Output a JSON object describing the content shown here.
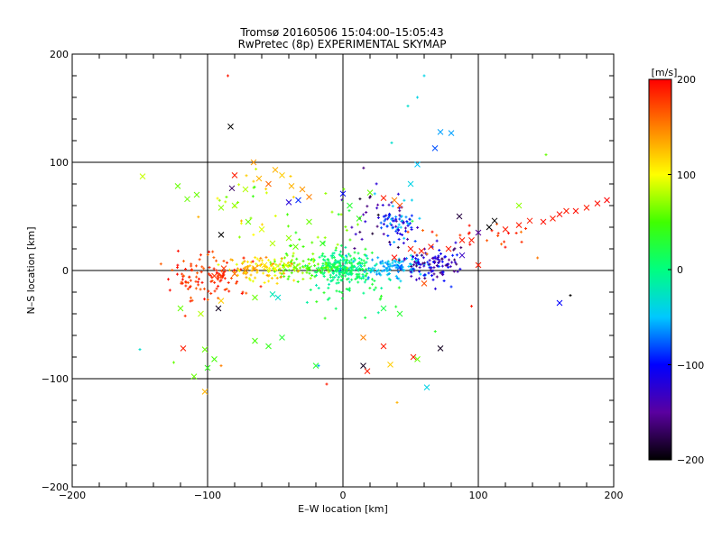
{
  "chart_data": {
    "type": "scatter",
    "title": "Tromsø 20160506 15:04:00–15:05:43",
    "subtitle": "RwPretec (8p) EXPERIMENTAL SKYMAP",
    "xlabel": "E–W location [km]",
    "ylabel": "N–S location [km]",
    "xlim": [
      -200,
      200
    ],
    "ylim": [
      -200,
      200
    ],
    "xticks": [
      "−200",
      "−100",
      "0",
      "100",
      "200"
    ],
    "yticks": [
      "−200",
      "−100",
      "0",
      "100",
      "200"
    ],
    "grid_lines": [
      -100,
      0,
      100
    ],
    "colorbar": {
      "label": "[m/s]",
      "range": [
        -200,
        200
      ],
      "ticks": [
        "−200",
        "−100",
        "0",
        "100",
        "200"
      ],
      "colormap": [
        "#000000",
        "#5a00a0",
        "#0000ff",
        "#00c8ff",
        "#00ff80",
        "#40ff00",
        "#ffff00",
        "#ff8000",
        "#ff0000"
      ]
    },
    "points": [
      {
        "x": -148,
        "y": 87,
        "v": 85,
        "m": "x"
      },
      {
        "x": -122,
        "y": 78,
        "v": 60,
        "m": "x"
      },
      {
        "x": -115,
        "y": 66,
        "v": 60,
        "m": "x"
      },
      {
        "x": -108,
        "y": 70,
        "v": 60,
        "m": "x"
      },
      {
        "x": -90,
        "y": 58,
        "v": 70,
        "m": "x"
      },
      {
        "x": -80,
        "y": 60,
        "v": 70,
        "m": "x"
      },
      {
        "x": -72,
        "y": 75,
        "v": 80,
        "m": "x"
      },
      {
        "x": -62,
        "y": 85,
        "v": 130,
        "m": "x"
      },
      {
        "x": -66,
        "y": 100,
        "v": 140,
        "m": "x"
      },
      {
        "x": -50,
        "y": 93,
        "v": 130,
        "m": "x"
      },
      {
        "x": -45,
        "y": 88,
        "v": 120,
        "m": "x"
      },
      {
        "x": -38,
        "y": 78,
        "v": 130,
        "m": "x"
      },
      {
        "x": -30,
        "y": 75,
        "v": 140,
        "m": "x"
      },
      {
        "x": -25,
        "y": 68,
        "v": 150,
        "m": "x"
      },
      {
        "x": -55,
        "y": 80,
        "v": 160,
        "m": "x"
      },
      {
        "x": -83,
        "y": 133,
        "v": -200,
        "m": "x"
      },
      {
        "x": -82,
        "y": 76,
        "v": -170,
        "m": "x"
      },
      {
        "x": -90,
        "y": 33,
        "v": -200,
        "m": "x"
      },
      {
        "x": -40,
        "y": 63,
        "v": -120,
        "m": "x"
      },
      {
        "x": -33,
        "y": 65,
        "v": -90,
        "m": "x"
      },
      {
        "x": -80,
        "y": 88,
        "v": 190,
        "m": "x"
      },
      {
        "x": -70,
        "y": 45,
        "v": 60,
        "m": "x"
      },
      {
        "x": -60,
        "y": 38,
        "v": 90,
        "m": "x"
      },
      {
        "x": -52,
        "y": 25,
        "v": 80,
        "m": "x"
      },
      {
        "x": -40,
        "y": 30,
        "v": 70,
        "m": "x"
      },
      {
        "x": -35,
        "y": 22,
        "v": 60,
        "m": "x"
      },
      {
        "x": -25,
        "y": 45,
        "v": 60,
        "m": "x"
      },
      {
        "x": -15,
        "y": 25,
        "v": 40,
        "m": "x"
      },
      {
        "x": 72,
        "y": 128,
        "v": -60,
        "m": "x"
      },
      {
        "x": 80,
        "y": 127,
        "v": -60,
        "m": "x"
      },
      {
        "x": 68,
        "y": 113,
        "v": -80,
        "m": "x"
      },
      {
        "x": 55,
        "y": 98,
        "v": -50,
        "m": "x"
      },
      {
        "x": 50,
        "y": 80,
        "v": -40,
        "m": "x"
      },
      {
        "x": 38,
        "y": 65,
        "v": 150,
        "m": "x"
      },
      {
        "x": 30,
        "y": 67,
        "v": 190,
        "m": "x"
      },
      {
        "x": 42,
        "y": 60,
        "v": 170,
        "m": "x"
      },
      {
        "x": 20,
        "y": 72,
        "v": 60,
        "m": "x"
      },
      {
        "x": 5,
        "y": 60,
        "v": 30,
        "m": "x"
      },
      {
        "x": 12,
        "y": 48,
        "v": 40,
        "m": "x"
      },
      {
        "x": 0,
        "y": 71,
        "v": -100,
        "m": "x"
      },
      {
        "x": 130,
        "y": 60,
        "v": 70,
        "m": "x"
      },
      {
        "x": 108,
        "y": 40,
        "v": -200,
        "m": "x"
      },
      {
        "x": 112,
        "y": 46,
        "v": -200,
        "m": "x"
      },
      {
        "x": 100,
        "y": 35,
        "v": -150,
        "m": "x"
      },
      {
        "x": 86,
        "y": 50,
        "v": -180,
        "m": "x"
      },
      {
        "x": 130,
        "y": 42,
        "v": 190,
        "m": "x"
      },
      {
        "x": 138,
        "y": 46,
        "v": 190,
        "m": "x"
      },
      {
        "x": 148,
        "y": 45,
        "v": 195,
        "m": "x"
      },
      {
        "x": 155,
        "y": 48,
        "v": 190,
        "m": "x"
      },
      {
        "x": 160,
        "y": 52,
        "v": 195,
        "m": "x"
      },
      {
        "x": 165,
        "y": 55,
        "v": 190,
        "m": "x"
      },
      {
        "x": 172,
        "y": 55,
        "v": 195,
        "m": "x"
      },
      {
        "x": 180,
        "y": 58,
        "v": 190,
        "m": "x"
      },
      {
        "x": 188,
        "y": 62,
        "v": 195,
        "m": "x"
      },
      {
        "x": 195,
        "y": 65,
        "v": 200,
        "m": "x"
      },
      {
        "x": 120,
        "y": 38,
        "v": 190,
        "m": "x"
      },
      {
        "x": 95,
        "y": 28,
        "v": 190,
        "m": "x"
      },
      {
        "x": 88,
        "y": 28,
        "v": 190,
        "m": "x"
      },
      {
        "x": 100,
        "y": 5,
        "v": 190,
        "m": "x"
      },
      {
        "x": 88,
        "y": 14,
        "v": -130,
        "m": "x"
      },
      {
        "x": 78,
        "y": 20,
        "v": 190,
        "m": "x"
      },
      {
        "x": 65,
        "y": 22,
        "v": 190,
        "m": "x"
      },
      {
        "x": 58,
        "y": 18,
        "v": 190,
        "m": "x"
      },
      {
        "x": 50,
        "y": 20,
        "v": 190,
        "m": "x"
      },
      {
        "x": 38,
        "y": 12,
        "v": 195,
        "m": "x"
      },
      {
        "x": 60,
        "y": -12,
        "v": 170,
        "m": "x"
      },
      {
        "x": 160,
        "y": -30,
        "v": -100,
        "m": "x"
      },
      {
        "x": 30,
        "y": -70,
        "v": 190,
        "m": "x"
      },
      {
        "x": 18,
        "y": -93,
        "v": 190,
        "m": "x"
      },
      {
        "x": 15,
        "y": -88,
        "v": -190,
        "m": "x"
      },
      {
        "x": 15,
        "y": -62,
        "v": 150,
        "m": "x"
      },
      {
        "x": 35,
        "y": -87,
        "v": 120,
        "m": "x"
      },
      {
        "x": 52,
        "y": -80,
        "v": 190,
        "m": "x"
      },
      {
        "x": 55,
        "y": -82,
        "v": 60,
        "m": "x"
      },
      {
        "x": 72,
        "y": -72,
        "v": -190,
        "m": "x"
      },
      {
        "x": 62,
        "y": -108,
        "v": -40,
        "m": "x"
      },
      {
        "x": 42,
        "y": -40,
        "v": 30,
        "m": "x"
      },
      {
        "x": 30,
        "y": -35,
        "v": 20,
        "m": "x"
      },
      {
        "x": -118,
        "y": -72,
        "v": 190,
        "m": "x"
      },
      {
        "x": -102,
        "y": -73,
        "v": 60,
        "m": "x"
      },
      {
        "x": -110,
        "y": -98,
        "v": 60,
        "m": "x"
      },
      {
        "x": -100,
        "y": -90,
        "v": 40,
        "m": "x"
      },
      {
        "x": -95,
        "y": -82,
        "v": 50,
        "m": "x"
      },
      {
        "x": -102,
        "y": -112,
        "v": 130,
        "m": "x"
      },
      {
        "x": -65,
        "y": -65,
        "v": 50,
        "m": "x"
      },
      {
        "x": -55,
        "y": -70,
        "v": 40,
        "m": "x"
      },
      {
        "x": -45,
        "y": -62,
        "v": 30,
        "m": "x"
      },
      {
        "x": -20,
        "y": -88,
        "v": 30,
        "m": "x"
      },
      {
        "x": -90,
        "y": -28,
        "v": 120,
        "m": "x"
      },
      {
        "x": -92,
        "y": -35,
        "v": -190,
        "m": "x"
      },
      {
        "x": -105,
        "y": -40,
        "v": 80,
        "m": "x"
      },
      {
        "x": -65,
        "y": -25,
        "v": 60,
        "m": "x"
      },
      {
        "x": -48,
        "y": -25,
        "v": -30,
        "m": "x"
      },
      {
        "x": -52,
        "y": -22,
        "v": -20,
        "m": "x"
      },
      {
        "x": -120,
        "y": -35,
        "v": 60,
        "m": "x"
      },
      {
        "x": -95,
        "y": -5,
        "v": 180,
        "m": "x"
      },
      {
        "x": -88,
        "y": 2,
        "v": 180,
        "m": "x"
      },
      {
        "x": -80,
        "y": -3,
        "v": 160,
        "m": "x"
      },
      {
        "x": -72,
        "y": 0,
        "v": 150,
        "m": "x"
      },
      {
        "x": -65,
        "y": 2,
        "v": 140,
        "m": "x"
      },
      {
        "x": -58,
        "y": 5,
        "v": 110,
        "m": "x"
      },
      {
        "x": -50,
        "y": 2,
        "v": 100,
        "m": "x"
      },
      {
        "x": -42,
        "y": 5,
        "v": 90,
        "m": "x"
      },
      {
        "x": -35,
        "y": 3,
        "v": 70,
        "m": "x"
      },
      {
        "x": -25,
        "y": 2,
        "v": 50,
        "m": "x"
      },
      {
        "x": -18,
        "y": 0,
        "v": 40,
        "m": "x"
      },
      {
        "x": 10,
        "y": 2,
        "v": -20,
        "m": "x"
      },
      {
        "x": 22,
        "y": 0,
        "v": -40,
        "m": "x"
      },
      {
        "x": 32,
        "y": 2,
        "v": -60,
        "m": "x"
      },
      {
        "x": 42,
        "y": 3,
        "v": -80,
        "m": "x"
      },
      {
        "x": 150,
        "y": 107,
        "v": 60,
        "m": "+"
      },
      {
        "x": -85,
        "y": 180,
        "v": 190,
        "m": "+"
      },
      {
        "x": 60,
        "y": 180,
        "v": -40,
        "m": "+"
      },
      {
        "x": 55,
        "y": 160,
        "v": -40,
        "m": "+"
      },
      {
        "x": 48,
        "y": 152,
        "v": -30,
        "m": "+"
      },
      {
        "x": 36,
        "y": 118,
        "v": -30,
        "m": "+"
      },
      {
        "x": -18,
        "y": -88,
        "v": -60,
        "m": "+"
      },
      {
        "x": -12,
        "y": -105,
        "v": 190,
        "m": "+"
      },
      {
        "x": -125,
        "y": -85,
        "v": 60,
        "m": "+"
      },
      {
        "x": -150,
        "y": -73,
        "v": -30,
        "m": "+"
      },
      {
        "x": -90,
        "y": -88,
        "v": 150,
        "m": "+"
      },
      {
        "x": 40,
        "y": -122,
        "v": 130,
        "m": "+"
      },
      {
        "x": 168,
        "y": -23,
        "v": -200,
        "m": "+"
      },
      {
        "x": 95,
        "y": -33,
        "v": 190,
        "m": "+"
      },
      {
        "x": 80,
        "y": -15,
        "v": -90,
        "m": "+"
      }
    ],
    "clusters": [
      {
        "cx": 0,
        "cy": 3,
        "sx": 10,
        "sy": 7,
        "n": 240,
        "vmin": -20,
        "vmax": 30
      },
      {
        "cx": 35,
        "cy": 3,
        "sx": 14,
        "sy": 5,
        "n": 110,
        "vmin": -70,
        "vmax": -30
      },
      {
        "cx": 65,
        "cy": 5,
        "sx": 12,
        "sy": 8,
        "n": 110,
        "vmin": -170,
        "vmax": -90
      },
      {
        "cx": 42,
        "cy": 45,
        "sx": 9,
        "sy": 10,
        "n": 80,
        "vmin": -160,
        "vmax": -40
      },
      {
        "cx": -30,
        "cy": 2,
        "sx": 14,
        "sy": 5,
        "n": 80,
        "vmin": 40,
        "vmax": 90
      },
      {
        "cx": -62,
        "cy": 0,
        "sx": 12,
        "sy": 6,
        "n": 90,
        "vmin": 90,
        "vmax": 150
      },
      {
        "cx": -100,
        "cy": -5,
        "sx": 14,
        "sy": 12,
        "n": 110,
        "vmin": 160,
        "vmax": 200
      },
      {
        "cx": 12,
        "cy": -25,
        "sx": 18,
        "sy": 15,
        "n": 40,
        "vmin": -20,
        "vmax": 40
      },
      {
        "cx": -10,
        "cy": 35,
        "sx": 25,
        "sy": 15,
        "n": 30,
        "vmin": 20,
        "vmax": 80
      },
      {
        "cx": 90,
        "cy": 30,
        "sx": 25,
        "sy": 10,
        "n": 25,
        "vmin": 150,
        "vmax": 200
      },
      {
        "cx": 20,
        "cy": 50,
        "sx": 12,
        "sy": 15,
        "n": 25,
        "vmin": -200,
        "vmax": -120
      },
      {
        "cx": -75,
        "cy": 60,
        "sx": 20,
        "sy": 20,
        "n": 25,
        "vmin": 40,
        "vmax": 140
      }
    ]
  }
}
